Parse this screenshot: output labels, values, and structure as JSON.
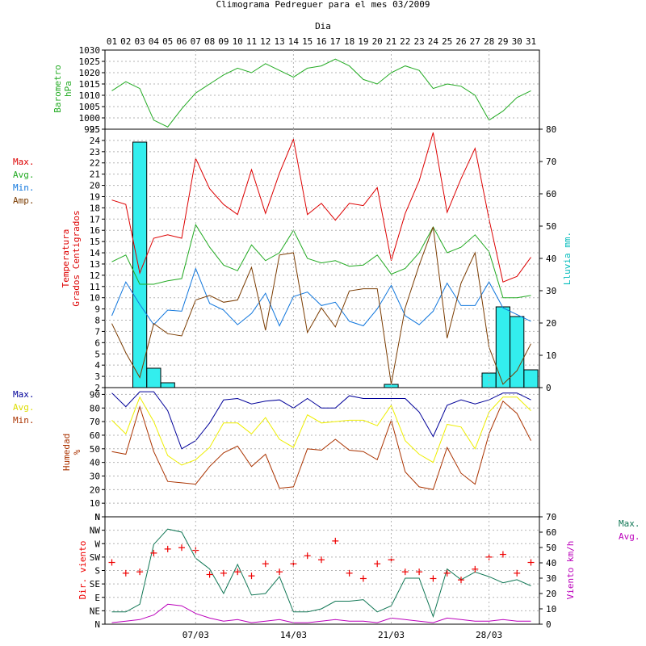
{
  "title": "Climograma Pedreguer para el mes 03/2009",
  "x_axis_label": "Dia",
  "day_labels": [
    "01",
    "02",
    "03",
    "04",
    "05",
    "06",
    "07",
    "08",
    "09",
    "10",
    "11",
    "12",
    "13",
    "14",
    "15",
    "16",
    "17",
    "18",
    "19",
    "20",
    "21",
    "22",
    "23",
    "24",
    "25",
    "26",
    "27",
    "28",
    "29",
    "30",
    "31"
  ],
  "week_labels": [
    "07/03",
    "14/03",
    "21/03",
    "28/03"
  ],
  "colors": {
    "barometer": "#22aa22",
    "max": "#dd0000",
    "avg": "#22aa22",
    "min": "#1177dd",
    "amp": "#7a3b00",
    "rain": "#33eeee",
    "hum_max": "#000099",
    "hum_avg": "#eeee00",
    "hum_min": "#aa3300",
    "wind_dir": "#ee0000",
    "wind_max": "#117755",
    "wind_avg": "#bb00bb",
    "rain_axis": "#00bbbb"
  },
  "chart_data": [
    {
      "type": "line",
      "panel": "barometer",
      "ylabel": [
        "Barometro",
        "hPa"
      ],
      "ylim": [
        995,
        1030
      ],
      "yticks": [
        995,
        1000,
        1005,
        1010,
        1015,
        1020,
        1025,
        1030
      ],
      "x": [
        1,
        2,
        3,
        4,
        5,
        6,
        7,
        8,
        9,
        10,
        11,
        12,
        13,
        14,
        15,
        16,
        17,
        18,
        19,
        20,
        21,
        22,
        23,
        24,
        25,
        26,
        27,
        28,
        29,
        30,
        31
      ],
      "series": [
        {
          "name": "Barometro",
          "values": [
            1012,
            1016,
            1013,
            999,
            996,
            1004,
            1011,
            1015,
            1019,
            1022,
            1020,
            1024,
            1021,
            1018,
            1022,
            1023,
            1026,
            1023,
            1017,
            1015,
            1020,
            1023,
            1021,
            1013,
            1015,
            1014,
            1010,
            999,
            1003,
            1009,
            1012
          ]
        }
      ]
    },
    {
      "type": "line+bar",
      "panel": "temperature",
      "ylabel": [
        "Temperatura",
        "Grados Centigrados"
      ],
      "ylim": [
        2,
        25
      ],
      "yticks": [
        2,
        3,
        4,
        5,
        6,
        7,
        8,
        9,
        10,
        11,
        12,
        13,
        14,
        15,
        16,
        17,
        18,
        19,
        20,
        21,
        22,
        23,
        24,
        25
      ],
      "y2label": "Lluvia mm.",
      "y2lim": [
        0,
        80
      ],
      "y2ticks": [
        0,
        10,
        20,
        30,
        40,
        50,
        60,
        70,
        80
      ],
      "legend": [
        "Max.",
        "Avg.",
        "Min.",
        "Amp."
      ],
      "x": [
        1,
        2,
        3,
        4,
        5,
        6,
        7,
        8,
        9,
        10,
        11,
        12,
        13,
        14,
        15,
        16,
        17,
        18,
        19,
        20,
        21,
        22,
        23,
        24,
        25,
        26,
        27,
        28,
        29,
        30,
        31
      ],
      "series": [
        {
          "name": "Max.",
          "values": [
            18.7,
            18.3,
            12.2,
            15.3,
            15.6,
            15.3,
            22.4,
            19.7,
            18.3,
            17.4,
            21.4,
            17.5,
            21.1,
            24.1,
            17.4,
            18.4,
            16.9,
            18.4,
            18.2,
            19.8,
            13.3,
            17.5,
            20.4,
            24.7,
            17.6,
            20.6,
            23.3,
            17.0,
            11.4,
            11.9,
            13.6
          ]
        },
        {
          "name": "Avg.",
          "values": [
            13.2,
            13.8,
            11.2,
            11.2,
            11.5,
            11.7,
            16.5,
            14.5,
            12.9,
            12.4,
            14.7,
            13.3,
            14.0,
            16.0,
            13.5,
            13.1,
            13.3,
            12.8,
            12.9,
            13.8,
            12.1,
            12.6,
            14.0,
            16.3,
            14.0,
            14.5,
            15.6,
            14.1,
            10.0,
            10.0,
            10.2
          ]
        },
        {
          "name": "Min.",
          "values": [
            8.4,
            11.4,
            9.4,
            7.6,
            8.9,
            8.8,
            12.6,
            9.5,
            8.9,
            7.6,
            8.6,
            10.4,
            7.5,
            10.1,
            10.5,
            9.3,
            9.6,
            7.9,
            7.5,
            9.0,
            11.1,
            8.4,
            7.6,
            8.8,
            11.3,
            9.3,
            9.3,
            11.4,
            9.1,
            8.5,
            7.9
          ]
        },
        {
          "name": "Amp.",
          "values": [
            7.7,
            5.1,
            2.9,
            7.7,
            6.8,
            6.6,
            9.8,
            10.2,
            9.6,
            9.8,
            12.7,
            7.1,
            13.8,
            14.0,
            6.9,
            9.1,
            7.4,
            10.6,
            10.8,
            10.8,
            2.3,
            9.1,
            12.9,
            16.3,
            6.4,
            11.3,
            14.0,
            5.6,
            2.3,
            3.5,
            5.9
          ]
        }
      ],
      "rain": {
        "name": "Lluvia",
        "values": [
          0,
          0,
          76,
          6,
          1.5,
          0,
          0,
          0,
          0,
          0,
          0,
          0,
          0,
          0,
          0,
          0,
          0,
          0,
          0,
          0,
          1,
          0,
          0,
          0,
          0,
          0,
          0,
          4.5,
          25,
          22,
          5.5
        ]
      }
    },
    {
      "type": "line",
      "panel": "humidity",
      "ylabel": [
        "Humedad",
        "%"
      ],
      "ylim": [
        0,
        95
      ],
      "yticks": [
        0,
        10,
        20,
        30,
        40,
        50,
        60,
        70,
        80,
        90
      ],
      "ytick_zero_label": "N",
      "legend": [
        "Max.",
        "Avg.",
        "Min."
      ],
      "x": [
        1,
        2,
        3,
        4,
        5,
        6,
        7,
        8,
        9,
        10,
        11,
        12,
        13,
        14,
        15,
        16,
        17,
        18,
        19,
        20,
        21,
        22,
        23,
        24,
        25,
        26,
        27,
        28,
        29,
        30,
        31
      ],
      "series": [
        {
          "name": "Max.",
          "values": [
            91,
            81,
            92,
            92,
            78,
            50,
            56,
            69,
            86,
            87,
            83,
            85,
            86,
            80,
            87,
            80,
            80,
            89,
            87,
            87,
            87,
            87,
            77,
            59,
            82,
            86,
            83,
            86,
            91,
            91,
            86
          ]
        },
        {
          "name": "Avg.",
          "values": [
            71,
            61,
            88,
            70,
            45,
            38,
            42,
            51,
            69,
            69,
            61,
            73,
            57,
            51,
            75,
            69,
            70,
            71,
            71,
            67,
            82,
            56,
            46,
            40,
            68,
            66,
            50,
            77,
            88,
            88,
            78
          ]
        },
        {
          "name": "Min.",
          "values": [
            48,
            46,
            81,
            48,
            26,
            25,
            24,
            37,
            47,
            52,
            37,
            46,
            21,
            22,
            50,
            49,
            57,
            49,
            48,
            42,
            71,
            33,
            22,
            20,
            51,
            32,
            24,
            61,
            85,
            76,
            56
          ]
        }
      ]
    },
    {
      "type": "scatter+line",
      "panel": "wind",
      "ylabel": "Dir. viento",
      "yticks_dir": [
        "N",
        "NE",
        "E",
        "SE",
        "S",
        "SW",
        "W",
        "NW"
      ],
      "y2label": "Viento km/h",
      "y2lim": [
        0,
        70
      ],
      "y2ticks": [
        0,
        10,
        20,
        30,
        40,
        50,
        60,
        70
      ],
      "legend": [
        "Max.",
        "Avg."
      ],
      "x": [
        1,
        2,
        3,
        4,
        5,
        6,
        7,
        8,
        9,
        10,
        11,
        12,
        13,
        14,
        15,
        16,
        17,
        18,
        19,
        20,
        21,
        22,
        23,
        24,
        25,
        26,
        27,
        28,
        29,
        30,
        31
      ],
      "direction_index": [
        4.6,
        3.8,
        3.9,
        5.3,
        5.6,
        5.7,
        5.5,
        3.7,
        3.8,
        3.9,
        3.6,
        4.5,
        3.9,
        4.5,
        5.1,
        4.8,
        6.2,
        3.8,
        3.4,
        4.5,
        4.8,
        3.9,
        3.9,
        3.4,
        3.8,
        3.3,
        4.1,
        5.0,
        5.2,
        3.8,
        4.6
      ],
      "series": [
        {
          "name": "Max.",
          "values": [
            8,
            8,
            13,
            52,
            62,
            60,
            43,
            36,
            20,
            39,
            19,
            20,
            31,
            8,
            8,
            10,
            15,
            15,
            16,
            8,
            12,
            30,
            30,
            5,
            36,
            29,
            34,
            31,
            27,
            29,
            25
          ]
        },
        {
          "name": "Avg.",
          "values": [
            1,
            2,
            3,
            6,
            13,
            12,
            7,
            4,
            2,
            3,
            1,
            2,
            3,
            1,
            1,
            2,
            3,
            2,
            2,
            1,
            4,
            3,
            2,
            1,
            4,
            3,
            2,
            2,
            3,
            2,
            2
          ]
        }
      ]
    }
  ]
}
